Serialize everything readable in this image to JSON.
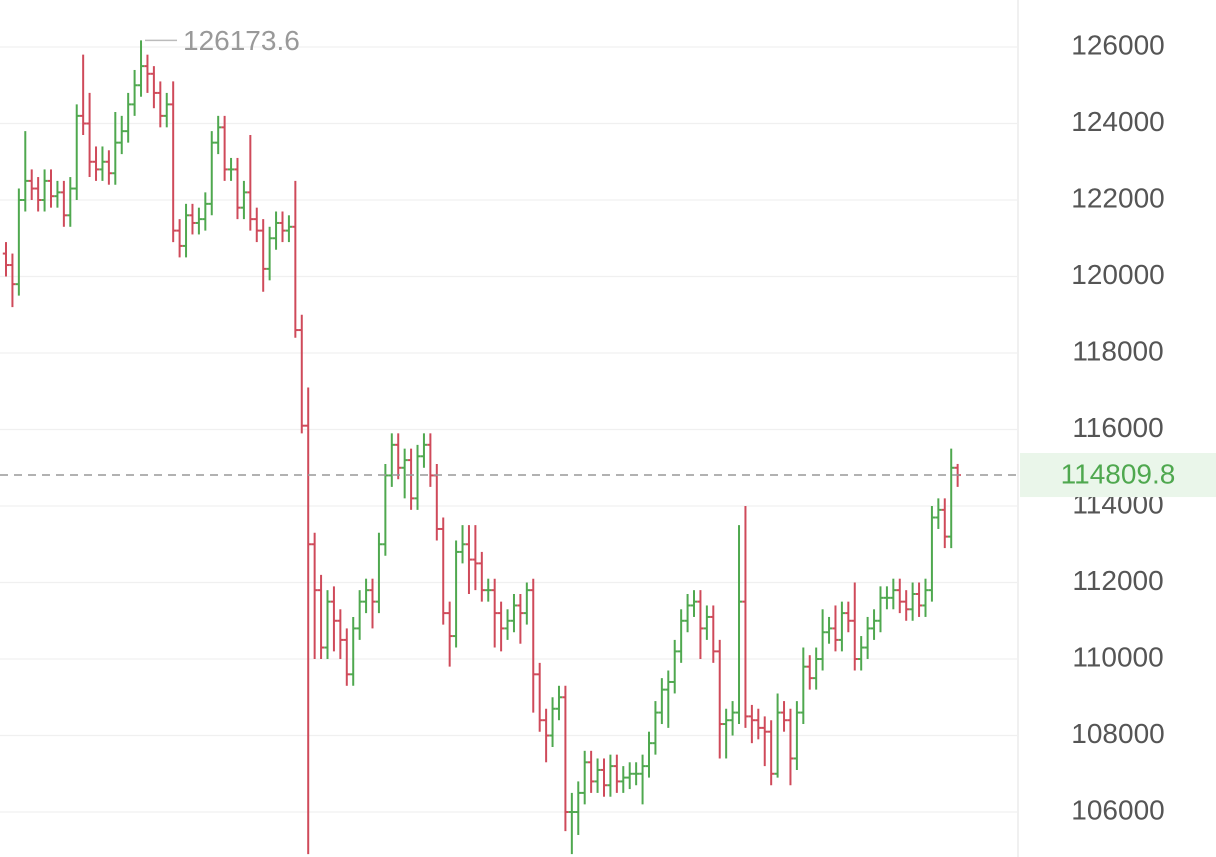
{
  "chart_data": {
    "type": "ohlc",
    "up_color": "#4fa84f",
    "down_color": "#cf4a5a",
    "grid": true,
    "ylim": [
      104824,
      127229
    ],
    "yticks": [
      106000,
      108000,
      110000,
      112000,
      114000,
      116000,
      118000,
      120000,
      122000,
      124000,
      126000
    ],
    "open": [
      120600,
      120300,
      119800,
      122000,
      122500,
      122300,
      122000,
      122500,
      122100,
      122200,
      121600,
      122300,
      124200,
      124000,
      123000,
      122800,
      123000,
      122700,
      123500,
      123800,
      124500,
      125000,
      125500,
      125300,
      124800,
      124200,
      124500,
      121200,
      120800,
      121600,
      121400,
      121500,
      121900,
      123500,
      123900,
      122800,
      122800,
      121800,
      122200,
      121500,
      121200,
      120200,
      121000,
      121400,
      121200,
      121300,
      118600,
      116100,
      113000,
      111800,
      110300,
      111500,
      111000,
      110500,
      109600,
      110800,
      111500,
      111800,
      111500,
      113000,
      114800,
      115600,
      115000,
      115200,
      114200,
      115300,
      115600,
      114800,
      113400,
      111200,
      110600,
      112800,
      113000,
      112600,
      112500,
      111800,
      111800,
      111200,
      110800,
      111000,
      111400,
      111200,
      111800,
      109600,
      108400,
      108000,
      108700,
      109000,
      106000,
      106000,
      106500,
      107300,
      106800,
      107100,
      106700,
      107200,
      106800,
      106900,
      107000,
      107000,
      107200,
      107800,
      108600,
      109200,
      109400,
      110200,
      111000,
      111400,
      111500,
      110800,
      111100,
      110200,
      108300,
      108400,
      108600,
      111500,
      108500,
      108400,
      108200,
      108100,
      107000,
      108600,
      108400,
      107400,
      108600,
      109800,
      109500,
      110000,
      110700,
      110800,
      110500,
      111200,
      111000,
      110000,
      110300,
      110800,
      111000,
      111600,
      111600,
      111800,
      111500,
      111300,
      111700,
      111400,
      111800,
      113700,
      113900,
      113200,
      115000
    ],
    "high": [
      120900,
      120600,
      122300,
      123800,
      122800,
      122600,
      122800,
      122800,
      122500,
      122500,
      122600,
      124500,
      125800,
      124800,
      123400,
      123400,
      123300,
      124300,
      124200,
      124800,
      125400,
      126173.6,
      125800,
      125500,
      125100,
      124800,
      125100,
      121500,
      121900,
      121900,
      121800,
      122200,
      123800,
      124200,
      124200,
      123100,
      123100,
      122500,
      123700,
      121800,
      121500,
      121300,
      121700,
      121700,
      121600,
      122500,
      119000,
      117100,
      113300,
      112200,
      111800,
      111900,
      111300,
      110800,
      111100,
      111800,
      112100,
      112100,
      113300,
      115100,
      115900,
      115900,
      115500,
      115500,
      115600,
      115900,
      115900,
      115100,
      113700,
      111500,
      113100,
      113500,
      113500,
      113500,
      112800,
      112100,
      112100,
      111500,
      111300,
      111700,
      111700,
      112000,
      112100,
      109900,
      108700,
      109000,
      109300,
      109300,
      106500,
      106800,
      107600,
      107600,
      107400,
      107400,
      107500,
      107500,
      107200,
      107300,
      107300,
      107500,
      108100,
      108900,
      109500,
      109700,
      110500,
      111300,
      111700,
      111800,
      111800,
      111400,
      111400,
      110500,
      108700,
      108900,
      113500,
      114000,
      108800,
      108700,
      108500,
      108400,
      109100,
      108900,
      108700,
      108900,
      110300,
      110100,
      110300,
      111300,
      111100,
      111400,
      111500,
      111500,
      112000,
      110600,
      111100,
      111300,
      111900,
      111900,
      112100,
      112100,
      111800,
      112000,
      112000,
      112100,
      114000,
      114200,
      114200,
      115500,
      115100
    ],
    "low": [
      120000,
      119200,
      119500,
      121700,
      122000,
      121700,
      121700,
      121800,
      121800,
      121300,
      121300,
      122000,
      123700,
      122600,
      122500,
      122500,
      122400,
      122400,
      123200,
      123500,
      124200,
      124700,
      124800,
      124400,
      123900,
      123900,
      120900,
      120500,
      120500,
      121100,
      121100,
      121200,
      121600,
      123200,
      122500,
      122500,
      121500,
      121500,
      121200,
      120900,
      119600,
      119900,
      120700,
      120900,
      120900,
      118400,
      115900,
      104900,
      110000,
      110000,
      110000,
      110200,
      110000,
      109300,
      109300,
      110500,
      111200,
      110800,
      111200,
      112700,
      114500,
      114700,
      114200,
      113900,
      113900,
      115000,
      114500,
      113100,
      110900,
      109800,
      110300,
      112500,
      111700,
      111800,
      111500,
      111500,
      110300,
      110200,
      110500,
      110700,
      110400,
      110900,
      108600,
      108100,
      107300,
      107700,
      108400,
      105500,
      104900,
      105400,
      106200,
      106500,
      106500,
      106400,
      106400,
      106500,
      106500,
      106600,
      106700,
      106200,
      106900,
      107500,
      108300,
      108200,
      109100,
      109900,
      110700,
      111100,
      110000,
      110500,
      109900,
      107400,
      107400,
      108000,
      108300,
      108200,
      107800,
      107900,
      107200,
      106700,
      106900,
      108100,
      106700,
      107100,
      108300,
      109200,
      109200,
      109700,
      110400,
      110200,
      110200,
      110700,
      109700,
      109700,
      110000,
      110500,
      110700,
      111300,
      111300,
      111200,
      111000,
      111000,
      111100,
      111100,
      111500,
      113400,
      112900,
      112900,
      114500
    ],
    "close": [
      120300,
      119800,
      122000,
      122500,
      122300,
      122000,
      122500,
      122100,
      122200,
      121600,
      122300,
      124200,
      124000,
      123000,
      122800,
      123000,
      122700,
      123500,
      123800,
      124500,
      125000,
      125500,
      125300,
      124800,
      124200,
      124500,
      121200,
      120800,
      121600,
      121400,
      121500,
      121900,
      123500,
      123900,
      122800,
      122800,
      121800,
      122200,
      121500,
      121200,
      120200,
      121000,
      121400,
      121200,
      121300,
      118600,
      116100,
      113000,
      111800,
      110300,
      111500,
      111000,
      110500,
      109600,
      110800,
      111500,
      111800,
      111500,
      113000,
      114800,
      115600,
      115000,
      115200,
      114200,
      115300,
      115600,
      114800,
      113400,
      111200,
      110600,
      112800,
      113000,
      112600,
      112500,
      111800,
      111800,
      111200,
      110800,
      111000,
      111400,
      111200,
      111800,
      109600,
      108400,
      108000,
      108700,
      109000,
      106000,
      106000,
      106500,
      107300,
      106800,
      107100,
      106700,
      107200,
      106800,
      106900,
      107000,
      107000,
      107200,
      107800,
      108600,
      109200,
      109400,
      110200,
      111000,
      111400,
      111500,
      110800,
      111100,
      110200,
      108300,
      108400,
      108600,
      111500,
      108500,
      108400,
      108200,
      108100,
      107000,
      108600,
      108400,
      107400,
      108600,
      109800,
      109500,
      110000,
      110700,
      110800,
      110500,
      111200,
      111000,
      110000,
      110300,
      110800,
      111000,
      111600,
      111600,
      111800,
      111500,
      111300,
      111700,
      111400,
      111800,
      113700,
      113900,
      113200,
      115000,
      114809.8
    ]
  }
}
